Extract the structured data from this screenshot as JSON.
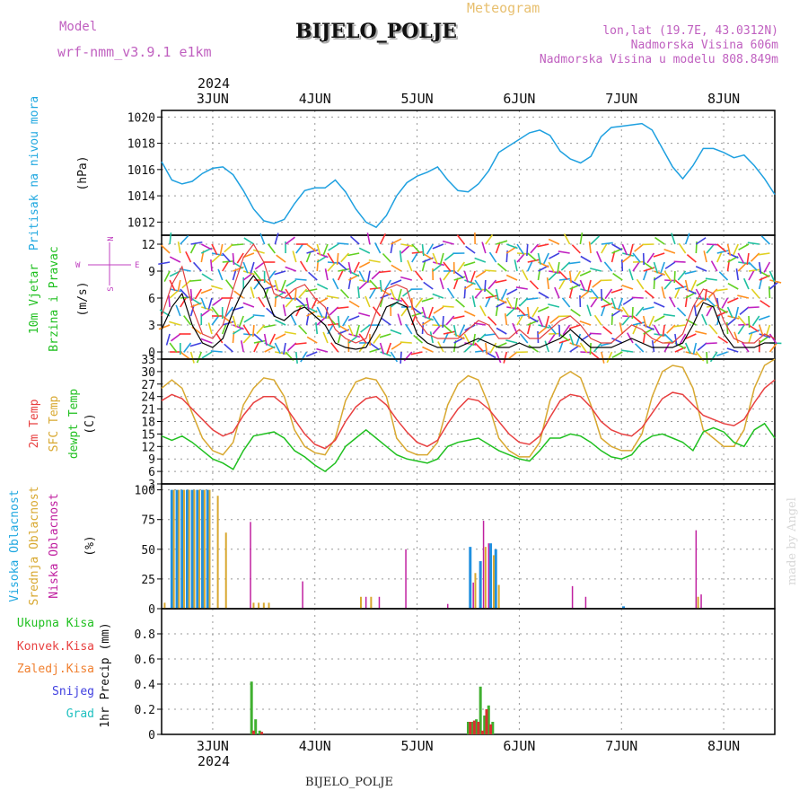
{
  "header": {
    "model_label": "Model",
    "model_name": "wrf-nmm_v3.9.1 e1km",
    "title": "BIJELO_POLJE",
    "meteogram": "Meteogram",
    "lonlat": "lon,lat (19.7E, 43.0312N)",
    "altitude": "Nadmorska Visina 606m",
    "model_altitude": "Nadmorska Visina u modelu 808.849m",
    "year_top": "2024",
    "year_bottom": "2024",
    "footer_station": "BIJELO_POLJE",
    "watermark": "made by Angel"
  },
  "colors": {
    "pressure": "#1ea0e0",
    "t2m": "#e84040",
    "sfc": "#d8a830",
    "dewpt": "#20c020",
    "cloud_high": "#2090e0",
    "cloud_mid": "#d8a830",
    "cloud_low": "#c020a0",
    "precip_total": "#40b030",
    "precip_conv": "#d83030",
    "wind_compass": "#c040c0",
    "wind_speed": "#000000",
    "wind_gust": "#e04040"
  },
  "chart_data": [
    {
      "type": "line",
      "panel": "pressure",
      "ylabel_1": "Pritisak na nivou mora",
      "ylabel_unit": "(hPa)",
      "ylim": [
        1011,
        1020.5
      ],
      "yticks": [
        "1012",
        "1014",
        "1016",
        "1018",
        "1020"
      ],
      "x_days": [
        "3JUN",
        "4JUN",
        "5JUN",
        "6JUN",
        "7JUN",
        "8JUN"
      ],
      "x": [
        2.5,
        2.6,
        2.7,
        2.8,
        2.9,
        3.0,
        3.1,
        3.2,
        3.3,
        3.4,
        3.5,
        3.6,
        3.7,
        3.8,
        3.9,
        4.0,
        4.1,
        4.2,
        4.3,
        4.4,
        4.5,
        4.6,
        4.7,
        4.8,
        4.9,
        5.0,
        5.1,
        5.2,
        5.3,
        5.4,
        5.5,
        5.6,
        5.7,
        5.8,
        5.9,
        6.0,
        6.1,
        6.2,
        6.3,
        6.4,
        6.5,
        6.6,
        6.7,
        6.8,
        6.9,
        7.0,
        7.1,
        7.2,
        7.3,
        7.4,
        7.5,
        7.6,
        7.7,
        7.8,
        7.9,
        8.0,
        8.1,
        8.2,
        8.3,
        8.4,
        8.5
      ],
      "series": [
        {
          "values": [
            1016.6,
            1015.2,
            1014.9,
            1015.1,
            1015.7,
            1016.1,
            1016.2,
            1015.6,
            1014.4,
            1013.0,
            1012.1,
            1011.9,
            1012.2,
            1013.4,
            1014.4,
            1014.6,
            1014.6,
            1015.2,
            1014.3,
            1013.0,
            1012.0,
            1011.6,
            1012.5,
            1014.0,
            1015.0,
            1015.5,
            1015.8,
            1016.2,
            1015.2,
            1014.4,
            1014.3,
            1014.9,
            1015.9,
            1017.3,
            1017.8,
            1018.3,
            1018.8,
            1019.0,
            1018.6,
            1017.4,
            1016.8,
            1016.5,
            1017.0,
            1018.5,
            1019.2,
            1019.3,
            1019.4,
            1019.5,
            1019.0,
            1017.6,
            1016.2,
            1015.3,
            1016.3,
            1017.6,
            1017.6,
            1017.3,
            1016.9,
            1017.1,
            1016.3,
            1015.3,
            1014.1
          ]
        }
      ]
    },
    {
      "type": "line",
      "panel": "wind",
      "ylabel_1": "10m Vjetar",
      "ylabel_2": "Brzina i Pravac",
      "ylabel_unit": "(m/s)",
      "compass_w": "W",
      "compass_e": "E",
      "compass_n": "N",
      "compass_s": "S",
      "ylim": [
        -0.8,
        13
      ],
      "yticks": [
        "0",
        "3",
        "6",
        "9",
        "12"
      ],
      "x": [
        2.5,
        2.6,
        2.7,
        2.8,
        2.9,
        3.0,
        3.1,
        3.2,
        3.3,
        3.4,
        3.5,
        3.6,
        3.7,
        3.8,
        3.9,
        4.0,
        4.1,
        4.2,
        4.3,
        4.4,
        4.5,
        4.6,
        4.7,
        4.8,
        4.9,
        5.0,
        5.1,
        5.2,
        5.3,
        5.4,
        5.5,
        5.6,
        5.7,
        5.8,
        5.9,
        6.0,
        6.1,
        6.2,
        6.3,
        6.4,
        6.5,
        6.6,
        6.7,
        6.8,
        6.9,
        7.0,
        7.1,
        7.2,
        7.3,
        7.4,
        7.5,
        7.6,
        7.7,
        7.8,
        7.9,
        8.0,
        8.1,
        8.2,
        8.3,
        8.4,
        8.5
      ],
      "series": [
        {
          "values": [
            2.5,
            5.0,
            6.5,
            3.0,
            1.0,
            0.5,
            1.5,
            4.5,
            7.0,
            8.5,
            7.0,
            4.0,
            3.5,
            4.5,
            5.0,
            4.0,
            3.0,
            1.0,
            0.5,
            0.3,
            0.5,
            2.5,
            5.0,
            5.5,
            5.0,
            2.0,
            1.0,
            0.5,
            0.5,
            0.5,
            1.0,
            1.5,
            1.0,
            0.5,
            0.5,
            1.0,
            0.5,
            0.5,
            1.0,
            1.5,
            2.5,
            1.5,
            0.5,
            0.5,
            0.5,
            1.0,
            1.5,
            1.0,
            0.5,
            0.5,
            0.5,
            1.0,
            3.0,
            5.5,
            5.0,
            2.0,
            0.5,
            0.5,
            0.5,
            1.0,
            1.0
          ]
        },
        {
          "values": [
            4.0,
            7.5,
            9.5,
            5.0,
            2.0,
            1.5,
            3.0,
            7.0,
            10.5,
            12.0,
            10.0,
            6.5,
            6.0,
            7.0,
            7.5,
            6.0,
            5.0,
            2.5,
            1.5,
            1.0,
            1.5,
            4.5,
            7.0,
            7.5,
            7.0,
            3.5,
            2.0,
            1.5,
            1.5,
            1.5,
            2.5,
            3.5,
            3.0,
            1.5,
            1.5,
            2.5,
            1.5,
            1.5,
            2.5,
            3.5,
            4.0,
            3.0,
            1.5,
            1.0,
            1.0,
            2.0,
            3.0,
            2.5,
            1.5,
            1.0,
            1.0,
            2.0,
            5.0,
            7.0,
            6.5,
            3.5,
            1.5,
            1.0,
            1.0,
            2.0,
            1.5
          ]
        }
      ]
    },
    {
      "type": "line",
      "panel": "temperature",
      "ylabel_1": "2m Temp",
      "ylabel_2": "SFC Temp",
      "ylabel_3": "dewpt Temp",
      "ylabel_unit": "(C)",
      "ylim": [
        3,
        33
      ],
      "yticks": [
        "3",
        "6",
        "9",
        "12",
        "15",
        "18",
        "21",
        "24",
        "27",
        "30",
        "33"
      ],
      "x": [
        2.5,
        2.6,
        2.7,
        2.8,
        2.9,
        3.0,
        3.1,
        3.2,
        3.3,
        3.4,
        3.5,
        3.6,
        3.7,
        3.8,
        3.9,
        4.0,
        4.1,
        4.2,
        4.3,
        4.4,
        4.5,
        4.6,
        4.7,
        4.8,
        4.9,
        5.0,
        5.1,
        5.2,
        5.3,
        5.4,
        5.5,
        5.6,
        5.7,
        5.8,
        5.9,
        6.0,
        6.1,
        6.2,
        6.3,
        6.4,
        6.5,
        6.6,
        6.7,
        6.8,
        6.9,
        7.0,
        7.1,
        7.2,
        7.3,
        7.4,
        7.5,
        7.6,
        7.7,
        7.8,
        7.9,
        8.0,
        8.1,
        8.2,
        8.3,
        8.4,
        8.5
      ],
      "series": [
        {
          "values": [
            23.0,
            24.5,
            23.5,
            21.0,
            18.5,
            16.0,
            14.5,
            15.5,
            19.5,
            22.5,
            24.0,
            24.0,
            22.0,
            18.5,
            15.0,
            12.5,
            11.5,
            13.5,
            18.0,
            21.5,
            23.5,
            24.0,
            22.0,
            18.5,
            15.5,
            13.0,
            12.0,
            13.5,
            17.5,
            21.0,
            23.5,
            23.0,
            21.0,
            18.0,
            15.0,
            13.0,
            12.5,
            14.5,
            19.0,
            23.0,
            24.5,
            24.0,
            21.5,
            18.0,
            16.0,
            15.0,
            14.5,
            16.5,
            20.0,
            23.5,
            25.0,
            24.5,
            22.0,
            19.5,
            18.5,
            17.5,
            17.0,
            18.5,
            22.5,
            26.0,
            28.0
          ]
        },
        {
          "values": [
            26.0,
            28.0,
            26.0,
            20.0,
            14.0,
            11.0,
            10.0,
            13.0,
            22.0,
            26.0,
            28.5,
            28.0,
            24.0,
            16.0,
            12.0,
            10.5,
            10.0,
            14.0,
            23.0,
            27.5,
            28.5,
            28.0,
            24.0,
            14.0,
            11.0,
            10.0,
            10.0,
            13.0,
            22.0,
            27.0,
            29.0,
            28.0,
            22.0,
            14.0,
            11.0,
            9.5,
            9.5,
            13.0,
            23.0,
            28.5,
            30.0,
            28.5,
            22.0,
            14.0,
            12.0,
            11.0,
            11.0,
            15.0,
            24.0,
            30.0,
            31.5,
            31.0,
            26.0,
            16.0,
            14.0,
            12.0,
            12.0,
            16.0,
            26.0,
            31.5,
            33.0
          ]
        },
        {
          "values": [
            14.5,
            13.5,
            14.5,
            13.0,
            11.0,
            9.0,
            8.0,
            6.5,
            11.0,
            14.5,
            15.0,
            15.5,
            14.0,
            11.0,
            9.5,
            7.5,
            6.0,
            8.0,
            12.0,
            14.0,
            16.0,
            14.0,
            12.0,
            10.0,
            9.0,
            8.5,
            8.0,
            9.0,
            12.0,
            13.0,
            13.5,
            14.0,
            12.5,
            11.0,
            10.0,
            9.0,
            8.5,
            11.0,
            14.0,
            14.0,
            15.0,
            14.5,
            13.0,
            11.0,
            9.5,
            9.0,
            10.0,
            13.0,
            14.5,
            15.0,
            14.0,
            13.0,
            11.0,
            15.5,
            16.5,
            15.5,
            13.0,
            12.0,
            16.0,
            17.5,
            14.0
          ]
        }
      ]
    },
    {
      "type": "bar",
      "panel": "clouds",
      "ylabel_1": "Visoka Oblacnost",
      "ylabel_2": "Srednja Oblacnost",
      "ylabel_3": "Niska Oblacnost",
      "ylabel_unit": "(%)",
      "ylim": [
        0,
        105
      ],
      "yticks": [
        "0",
        "25",
        "50",
        "75",
        "100"
      ],
      "bars": {
        "high_x": [
          2.6,
          2.65,
          2.7,
          2.75,
          2.8,
          2.85,
          2.9,
          2.95,
          5.52,
          5.62,
          5.72,
          5.77,
          7.02
        ],
        "high_v": [
          100,
          100,
          100,
          100,
          100,
          100,
          100,
          100,
          52,
          40,
          55,
          50,
          2
        ],
        "mid_x": [
          2.53,
          2.62,
          2.67,
          2.72,
          2.77,
          2.82,
          2.87,
          2.92,
          2.97,
          3.05,
          3.13,
          3.4,
          3.45,
          3.5,
          3.55,
          4.45,
          4.55,
          5.57,
          5.67,
          5.75,
          5.8,
          7.75
        ],
        "mid_v": [
          5,
          100,
          100,
          100,
          100,
          100,
          100,
          100,
          100,
          95,
          64,
          5,
          5,
          5,
          5,
          10,
          10,
          30,
          52,
          45,
          20,
          10
        ],
        "low_x": [
          3.37,
          3.88,
          4.5,
          4.63,
          4.89,
          5.3,
          5.55,
          5.65,
          5.7,
          6.52,
          6.65,
          7.73,
          7.78
        ],
        "low_v": [
          73,
          23,
          10,
          10,
          50,
          4,
          22,
          74,
          55,
          19,
          10,
          66,
          12
        ]
      }
    },
    {
      "type": "bar",
      "panel": "precipitation",
      "legend": [
        "Ukupna Kisa",
        "Konvek.Kisa",
        "Zaledj.Kisa",
        "Snijeg",
        "Grad"
      ],
      "ylabel_unit": "1hr Precip (mm)",
      "ylim": [
        0,
        1.0
      ],
      "yticks": [
        "0",
        "0.2",
        "0.4",
        "0.6",
        "0.8"
      ],
      "bars": {
        "total_x": [
          3.38,
          3.42,
          3.46,
          5.5,
          5.54,
          5.58,
          5.62,
          5.66,
          5.7,
          5.74
        ],
        "total_v": [
          0.42,
          0.12,
          0.03,
          0.1,
          0.1,
          0.12,
          0.38,
          0.15,
          0.23,
          0.1
        ],
        "conv_x": [
          3.4,
          3.48,
          5.52,
          5.56,
          5.6,
          5.64,
          5.68,
          5.72
        ],
        "conv_v": [
          0.03,
          0.02,
          0.1,
          0.11,
          0.1,
          0.03,
          0.2,
          0.08
        ]
      }
    }
  ]
}
